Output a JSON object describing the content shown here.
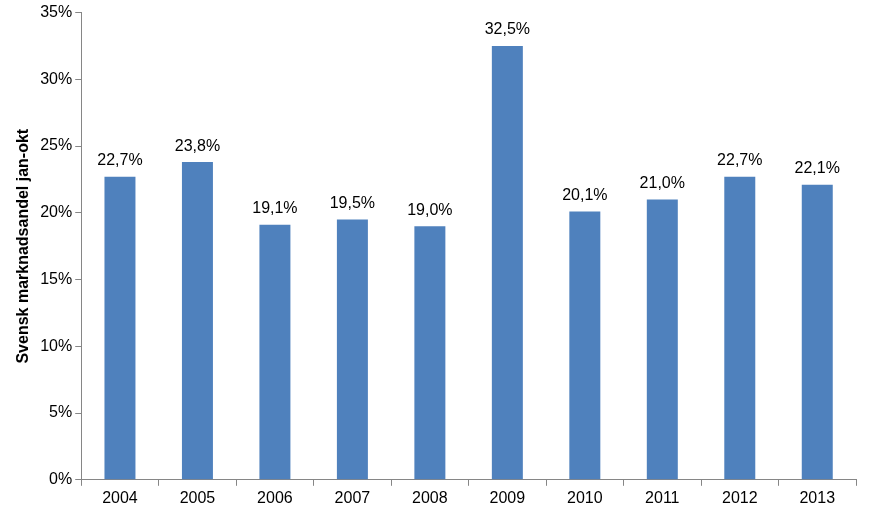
{
  "chart_data": {
    "type": "bar",
    "y_label": "Svensk marknadsandel jan-okt",
    "categories": [
      "2004",
      "2005",
      "2006",
      "2007",
      "2008",
      "2009",
      "2010",
      "2011",
      "2012",
      "2013"
    ],
    "values": [
      22.7,
      23.8,
      19.1,
      19.5,
      19.0,
      32.5,
      20.1,
      21.0,
      22.7,
      22.1
    ],
    "value_labels": [
      "22,7%",
      "23,8%",
      "19,1%",
      "19,5%",
      "19,0%",
      "32,5%",
      "20,1%",
      "21,0%",
      "22,7%",
      "22,1%"
    ],
    "color": "#4f81bd",
    "ylim": [
      0,
      35
    ],
    "yticks": [
      {
        "value": 0,
        "label": "0%"
      },
      {
        "value": 5,
        "label": "5%"
      },
      {
        "value": 10,
        "label": "10%"
      },
      {
        "value": 15,
        "label": "15%"
      },
      {
        "value": 20,
        "label": "20%"
      },
      {
        "value": 25,
        "label": "25%"
      },
      {
        "value": 30,
        "label": "30%"
      },
      {
        "value": 35,
        "label": "35%"
      }
    ],
    "grid": false,
    "data_labels": true
  }
}
